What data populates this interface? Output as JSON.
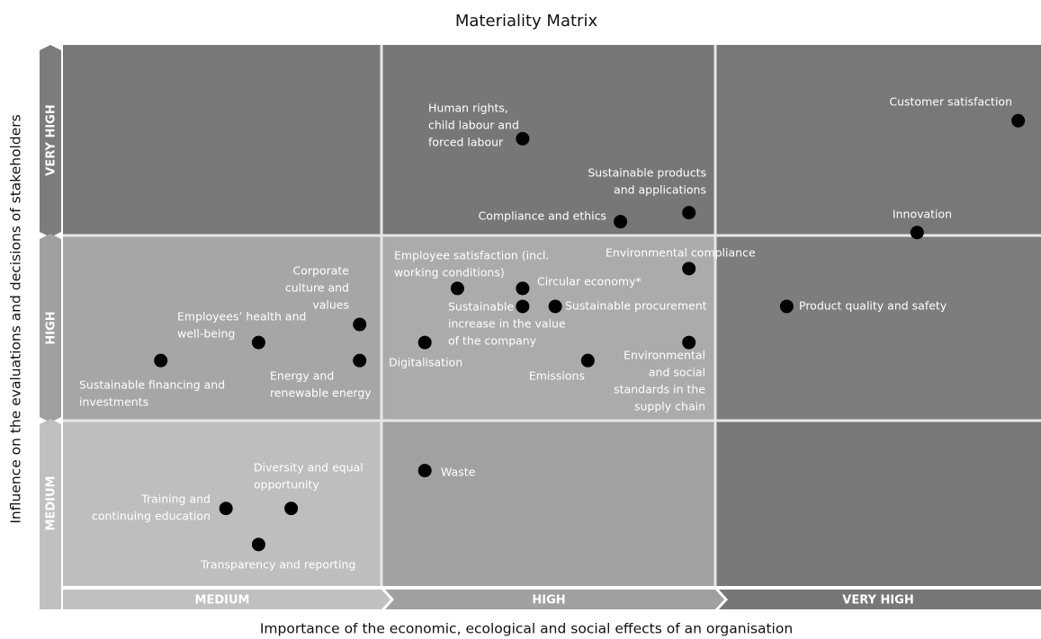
{
  "chart_data": {
    "type": "scatter",
    "title": "Materiality Matrix",
    "xlabel": "Importance of the economic, ecological and social effects of an organisation",
    "ylabel": "Influence on the  evaluations and decisions of stakeholders",
    "x_categories": [
      "MEDIUM",
      "HIGH",
      "VERY HIGH"
    ],
    "y_categories": [
      "MEDIUM",
      "HIGH",
      "VERY HIGH"
    ],
    "xlim": [
      0,
      3
    ],
    "ylim": [
      0,
      3
    ],
    "color": "#000000",
    "points": [
      {
        "label": [
          "Customer satisfaction"
        ],
        "x": 2.93,
        "y": 2.58
      },
      {
        "label": [
          "Human rights,",
          "child labour and",
          "forced labour"
        ],
        "x": 1.41,
        "y": 2.48
      },
      {
        "label": [
          "Sustainable products",
          "and applications"
        ],
        "x": 1.92,
        "y": 2.07
      },
      {
        "label": [
          "Compliance and ethics"
        ],
        "x": 1.71,
        "y": 2.02
      },
      {
        "label": [
          "Innovation"
        ],
        "x": 2.62,
        "y": 1.96
      },
      {
        "label": [
          "Environmental compliance"
        ],
        "x": 1.92,
        "y": 1.76
      },
      {
        "label": [
          "Employee satisfaction (incl.",
          "working conditions)"
        ],
        "x": 1.21,
        "y": 1.65
      },
      {
        "label": [
          "Circular economy*"
        ],
        "x": 1.41,
        "y": 1.65
      },
      {
        "label": [
          "Sustainable",
          "increase in the value",
          "of the company"
        ],
        "x": 1.41,
        "y": 1.55
      },
      {
        "label": [
          "Sustainable procurement"
        ],
        "x": 1.51,
        "y": 1.55
      },
      {
        "label": [
          "Product quality and safety"
        ],
        "x": 2.22,
        "y": 1.55
      },
      {
        "label": [
          "Corporate",
          "culture and",
          "values"
        ],
        "x": 0.91,
        "y": 1.45
      },
      {
        "label": [
          "Employees’ health and",
          "well-being"
        ],
        "x": 0.6,
        "y": 1.35
      },
      {
        "label": [
          "Digitalisation"
        ],
        "x": 1.11,
        "y": 1.35
      },
      {
        "label": [
          "Environmental",
          "and social",
          "standards in the",
          "supply chain"
        ],
        "x": 1.92,
        "y": 1.35
      },
      {
        "label": [
          "Sustainable financing and",
          "investments"
        ],
        "x": 0.3,
        "y": 1.25
      },
      {
        "label": [
          "Energy and",
          "renewable energy"
        ],
        "x": 0.91,
        "y": 1.25
      },
      {
        "label": [
          "Emissions"
        ],
        "x": 1.61,
        "y": 1.25
      },
      {
        "label": [
          "Waste"
        ],
        "x": 1.11,
        "y": 0.64
      },
      {
        "label": [
          "Diversity and equal",
          "opportunity"
        ],
        "x": 0.7,
        "y": 0.43
      },
      {
        "label": [
          "Training and",
          "continuing education"
        ],
        "x": 0.5,
        "y": 0.43
      },
      {
        "label": [
          "Transparency and reporting"
        ],
        "x": 0.6,
        "y": 0.23
      }
    ]
  }
}
